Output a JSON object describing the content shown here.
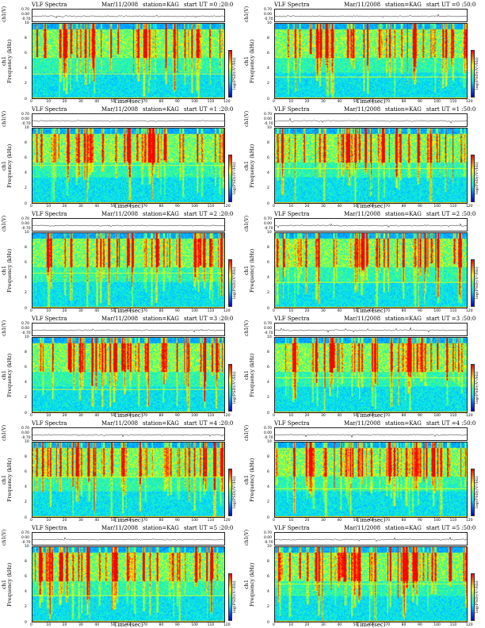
{
  "chart_data": {
    "type": "heatmap",
    "header": {
      "title": "VLF Spectra",
      "date": "Mar/11/2008",
      "station": "station=KAG"
    },
    "top_ylabel": "ch1(V)",
    "top_ticks": [
      "0.70",
      "0.00",
      "-0.70"
    ],
    "ylabel": "ch1\nFrequency (kHz)",
    "yticks": [
      "10",
      "8",
      "6",
      "4",
      "2",
      "0"
    ],
    "ylim": [
      0,
      10
    ],
    "xlabel": "Time (sec)",
    "xticks": [
      "0",
      "10",
      "20",
      "30",
      "40",
      "50",
      "60",
      "70",
      "80",
      "90",
      "100",
      "110",
      "120"
    ],
    "xlim": [
      0,
      120
    ],
    "colorbar_label": "log(PSD)(V²/Hz)",
    "colorscale": [
      "#0000c0",
      "#0060ff",
      "#00e0ff",
      "#40ff80",
      "#ffff00",
      "#ff8000",
      "#ff0000"
    ],
    "panels": [
      {
        "start": "start UT =0 :20:0"
      },
      {
        "start": "start UT =0 :50:0"
      },
      {
        "start": "start UT =1 :20:0"
      },
      {
        "start": "start UT =1 :50:0"
      },
      {
        "start": "start UT =2 :20:0"
      },
      {
        "start": "start UT =2 :50:0"
      },
      {
        "start": "start UT =3 :20:0"
      },
      {
        "start": "start UT =3 :50:0"
      },
      {
        "start": "start UT =4 :20:0"
      },
      {
        "start": "start UT =4 :50:0"
      },
      {
        "start": "start UT =5 :20:0"
      },
      {
        "start": "start UT =5 :50:0"
      }
    ]
  }
}
